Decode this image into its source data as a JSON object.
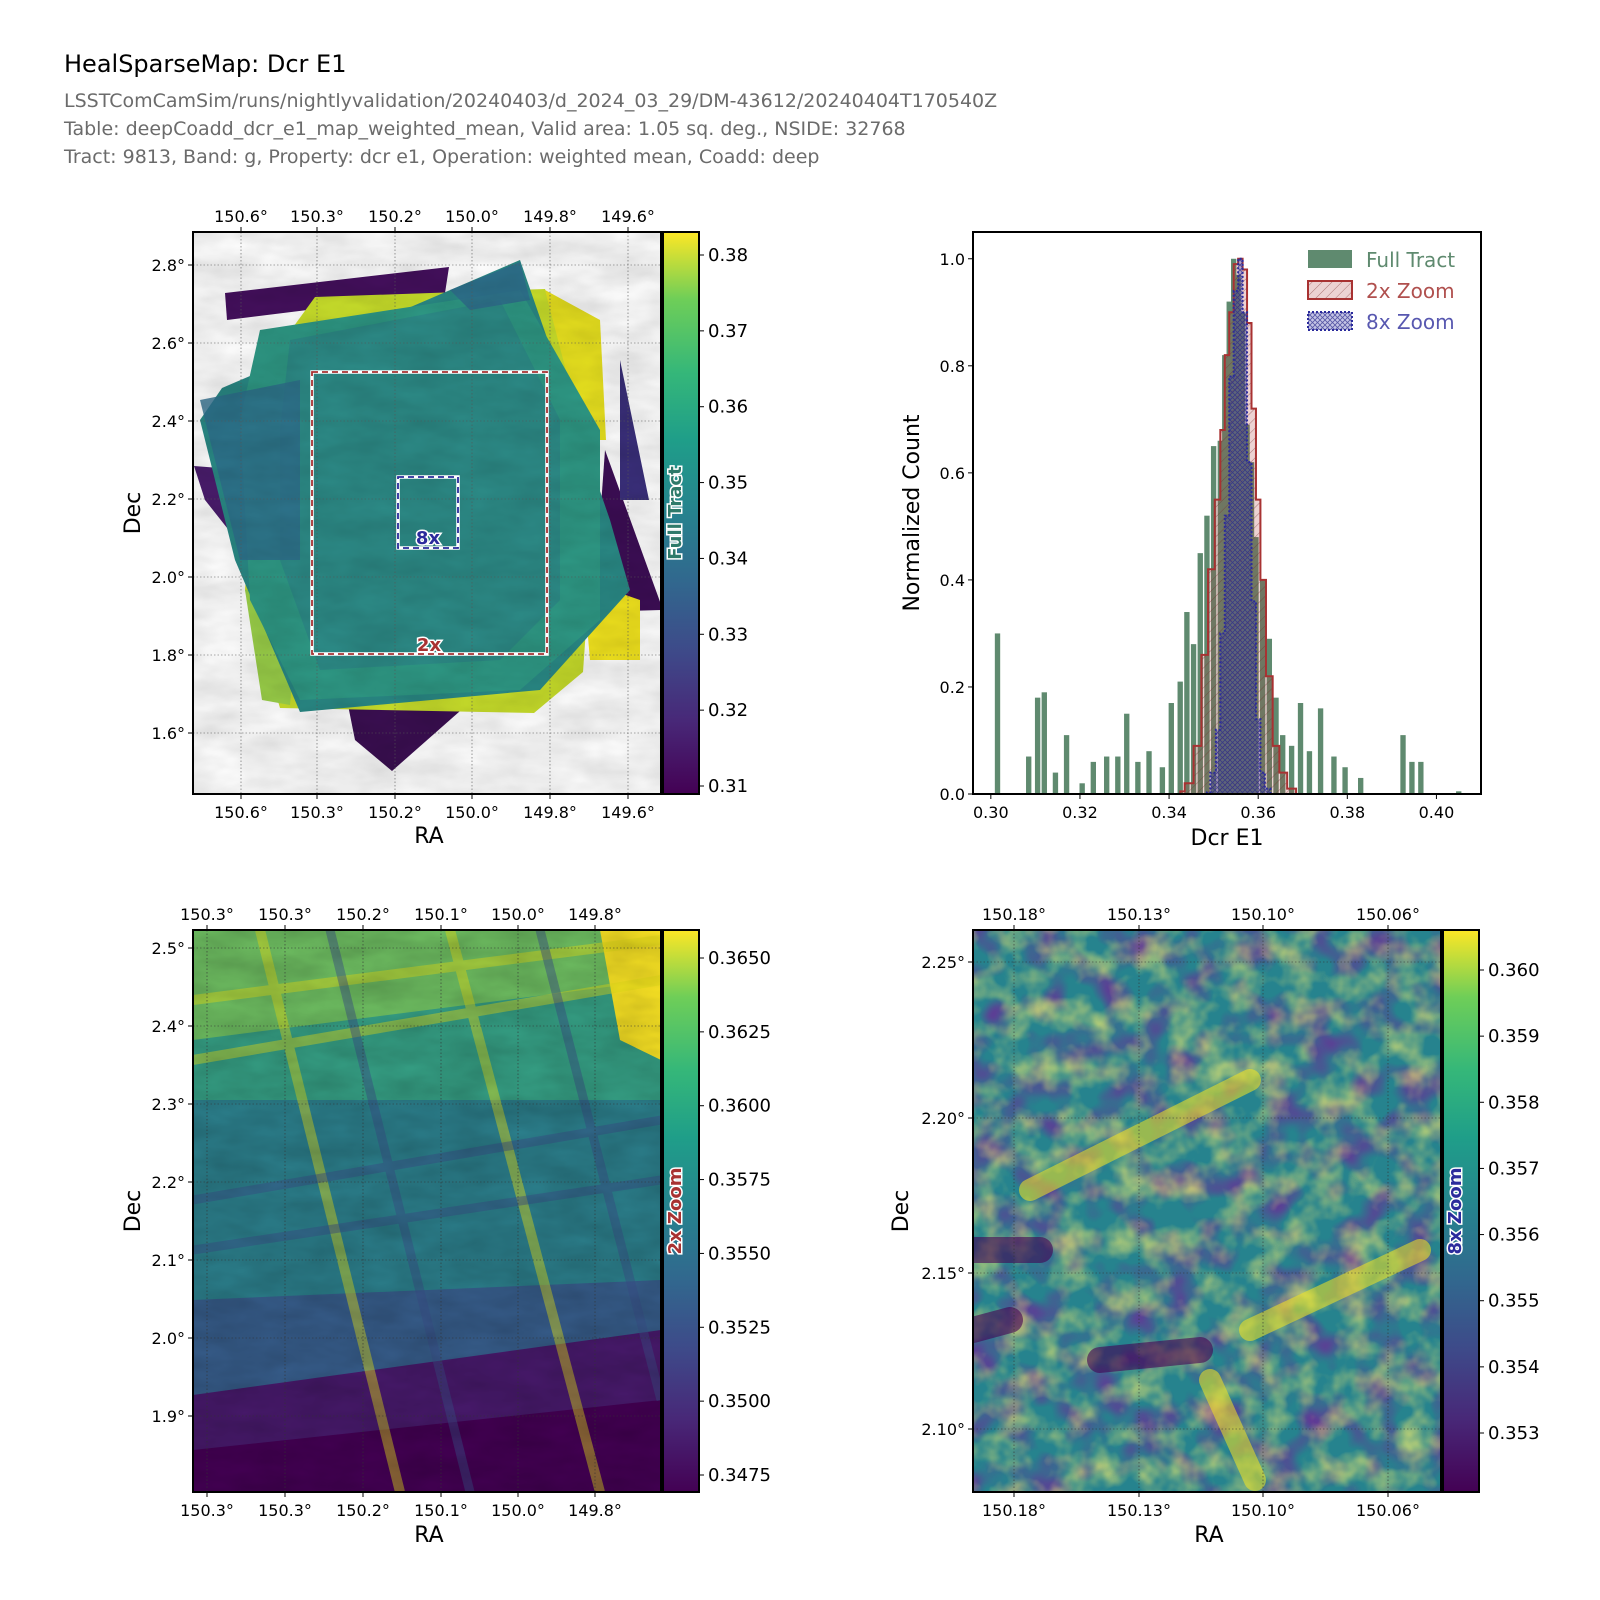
{
  "header": {
    "title": "HealSparseMap: Dcr E1",
    "subtitle_lines": [
      "LSSTComCamSim/runs/nightlyvalidation/20240403/d_2024_03_29/DM-43612/20240404T170540Z",
      "Table: deepCoadd_dcr_e1_map_weighted_mean, Valid area: 1.05 sq. deg., NSIDE: 32768",
      "Tract: 9813, Band: g, Property: dcr e1, Operation: weighted mean, Coadd: deep"
    ]
  },
  "colors": {
    "full_tract": "#2e6b4a",
    "zoom2x": "#a83232",
    "zoom8x": "#2b2b9c",
    "box_2x": "#a83232",
    "box_8x": "#2b2b9c"
  },
  "chart_data": [
    {
      "type": "heatmap",
      "name": "full-tract-map",
      "xlabel": "RA",
      "ylabel": "Dec",
      "x_ticks": [
        "150.6°",
        "150.3°",
        "150.2°",
        "150.0°",
        "149.8°",
        "149.6°"
      ],
      "y_ticks": [
        "2.8°",
        "2.6°",
        "2.4°",
        "2.2°",
        "2.0°",
        "1.8°",
        "1.6°"
      ],
      "colorbar_label": "Full Tract",
      "colorbar_ticks": [
        "0.38",
        "0.37",
        "0.36",
        "0.35",
        "0.34",
        "0.33",
        "0.32",
        "0.31"
      ],
      "colorbar_range": [
        0.31,
        0.38
      ],
      "colormap": "viridis",
      "annotations": [
        "8x",
        "2x"
      ]
    },
    {
      "type": "bar",
      "name": "histogram",
      "xlabel": "Dcr E1",
      "ylabel": "Normalized Count",
      "xlim": [
        0.296,
        0.41
      ],
      "ylim": [
        0,
        1.05
      ],
      "x_ticks": [
        "0.30",
        "0.32",
        "0.34",
        "0.36",
        "0.38",
        "0.40"
      ],
      "x_tick_values": [
        0.3,
        0.32,
        0.34,
        0.36,
        0.38,
        0.4
      ],
      "y_ticks": [
        "0.0",
        "0.2",
        "0.4",
        "0.6",
        "0.8",
        "1.0"
      ],
      "y_tick_values": [
        0.0,
        0.2,
        0.4,
        0.6,
        0.8,
        1.0
      ],
      "legend_position": "top-right",
      "series": [
        {
          "name": "Full Tract",
          "style": "filled",
          "x": [
            0.3015,
            0.3085,
            0.3105,
            0.312,
            0.3145,
            0.317,
            0.3205,
            0.323,
            0.326,
            0.3285,
            0.3305,
            0.333,
            0.3355,
            0.3385,
            0.3405,
            0.3425,
            0.344,
            0.3455,
            0.347,
            0.3485,
            0.35,
            0.3515,
            0.3525,
            0.3535,
            0.3545,
            0.3555,
            0.3565,
            0.3575,
            0.3585,
            0.3595,
            0.361,
            0.3625,
            0.364,
            0.3655,
            0.3675,
            0.3695,
            0.3715,
            0.374,
            0.377,
            0.3795,
            0.383,
            0.3925,
            0.3945,
            0.3965,
            0.405
          ],
          "values": [
            0.3,
            0.07,
            0.18,
            0.19,
            0.04,
            0.11,
            0.02,
            0.06,
            0.07,
            0.07,
            0.15,
            0.06,
            0.08,
            0.05,
            0.17,
            0.21,
            0.34,
            0.28,
            0.45,
            0.52,
            0.65,
            0.66,
            0.82,
            0.92,
            1.0,
            0.97,
            0.9,
            0.69,
            0.62,
            0.48,
            0.4,
            0.29,
            0.18,
            0.11,
            0.09,
            0.17,
            0.08,
            0.16,
            0.07,
            0.05,
            0.03,
            0.11,
            0.06,
            0.06,
            0.005
          ],
          "bin_width": 0.0012
        },
        {
          "name": "2x Zoom",
          "style": "hatched-step",
          "x": [
            0.3425,
            0.3445,
            0.3465,
            0.348,
            0.3495,
            0.351,
            0.352,
            0.353,
            0.354,
            0.355,
            0.356,
            0.357,
            0.358,
            0.359,
            0.36,
            0.361,
            0.3625,
            0.364,
            0.3655,
            0.3675,
            0.3695
          ],
          "values": [
            0.005,
            0.02,
            0.09,
            0.26,
            0.42,
            0.55,
            0.68,
            0.82,
            0.9,
            0.99,
            1.0,
            0.98,
            0.88,
            0.72,
            0.55,
            0.4,
            0.22,
            0.09,
            0.04,
            0.01,
            0.0
          ]
        },
        {
          "name": "8x Zoom",
          "style": "crosshatched-step",
          "x": [
            0.3485,
            0.35,
            0.351,
            0.352,
            0.353,
            0.354,
            0.355,
            0.356,
            0.357,
            0.358,
            0.359,
            0.36,
            0.361,
            0.362,
            0.3635
          ],
          "values": [
            0.003,
            0.04,
            0.12,
            0.3,
            0.52,
            0.78,
            0.94,
            1.0,
            0.9,
            0.62,
            0.36,
            0.14,
            0.04,
            0.01,
            0.0
          ]
        }
      ]
    },
    {
      "type": "heatmap",
      "name": "zoom-2x-map",
      "xlabel": "RA",
      "ylabel": "Dec",
      "x_ticks": [
        "150.3°",
        "150.3°",
        "150.2°",
        "150.1°",
        "150.0°",
        "149.8°"
      ],
      "y_ticks": [
        "2.5°",
        "2.4°",
        "2.3°",
        "2.2°",
        "2.1°",
        "2.0°",
        "1.9°"
      ],
      "colorbar_label": "2x Zoom",
      "colorbar_ticks": [
        "0.3650",
        "0.3625",
        "0.3600",
        "0.3575",
        "0.3550",
        "0.3525",
        "0.3500",
        "0.3475"
      ],
      "colorbar_range": [
        0.3465,
        0.3662
      ],
      "colormap": "viridis"
    },
    {
      "type": "heatmap",
      "name": "zoom-8x-map",
      "xlabel": "RA",
      "ylabel": "Dec",
      "x_ticks": [
        "150.18°",
        "150.13°",
        "150.10°",
        "150.06°"
      ],
      "y_ticks": [
        "2.25°",
        "2.20°",
        "2.15°",
        "2.10°"
      ],
      "colorbar_label": "8x Zoom",
      "colorbar_ticks": [
        "0.360",
        "0.359",
        "0.358",
        "0.357",
        "0.356",
        "0.355",
        "0.354",
        "0.353"
      ],
      "colorbar_range": [
        0.3522,
        0.3607
      ],
      "colormap": "viridis"
    }
  ]
}
